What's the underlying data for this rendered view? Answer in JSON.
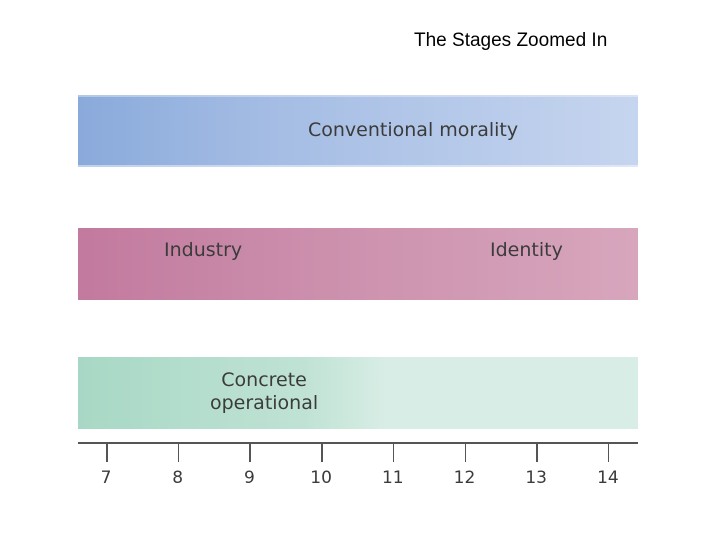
{
  "title": "The Stages Zoomed In",
  "bands": {
    "conventional": "Conventional morality",
    "industry": "Industry",
    "identity": "Identity",
    "concrete_line1": "Concrete",
    "concrete_line2": "operational"
  },
  "axis": {
    "ticks": [
      "7",
      "8",
      "9",
      "10",
      "11",
      "12",
      "13",
      "14"
    ]
  },
  "colors": {
    "top_band": "#a5bde4",
    "middle_band": "#cc90ad",
    "bottom_band": "#bfe2d4"
  }
}
